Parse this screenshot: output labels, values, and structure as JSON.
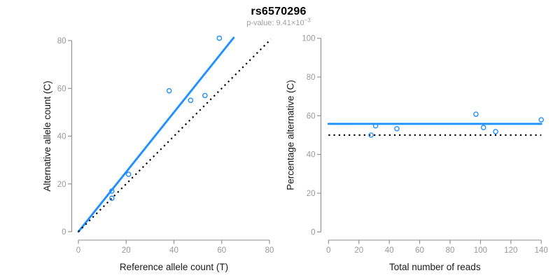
{
  "header": {
    "title": "rs6570296",
    "subtitle": {
      "label": "p-value: ",
      "mantissa": "9.41",
      "base": "×10",
      "exponent": "−3"
    }
  },
  "colors": {
    "accent_blue": "#1E90FF",
    "line_black": "#000000",
    "axis_gray": "#8C8C8C",
    "tick_label_gray": "#999999",
    "axis_title_color": "#1A1A1A",
    "subtitle_gray": "#9E9E9E",
    "background": "#FFFFFF"
  },
  "chart_data": [
    {
      "type": "scatter",
      "name": "allele-counts",
      "xlabel": "Reference allele count (T)",
      "ylabel": "Alternative allele count (C)",
      "xlim": [
        0,
        80
      ],
      "ylim": [
        0,
        80
      ],
      "xticks": [
        0,
        20,
        40,
        60,
        80
      ],
      "yticks": [
        0,
        20,
        40,
        60,
        80
      ],
      "grid": false,
      "legend": "none",
      "points": [
        [
          14,
          14
        ],
        [
          14,
          17
        ],
        [
          21,
          24
        ],
        [
          38,
          59
        ],
        [
          47,
          55
        ],
        [
          53,
          57
        ],
        [
          59,
          81
        ]
      ],
      "lines": [
        {
          "name": "regression-fit",
          "style": "solid",
          "color_key": "accent_blue",
          "x": [
            0,
            65
          ],
          "y": [
            0,
            81.2
          ]
        },
        {
          "name": "identity-diagonal",
          "style": "dotted",
          "color_key": "line_black",
          "x": [
            0,
            80.6
          ],
          "y": [
            0,
            80.6
          ]
        }
      ]
    },
    {
      "type": "scatter",
      "name": "percentage-vs-reads",
      "xlabel": "Total number of reads",
      "ylabel": "Percentage alternative (C)",
      "xlim": [
        0,
        140
      ],
      "ylim": [
        0,
        100
      ],
      "xticks": [
        0,
        20,
        40,
        60,
        80,
        100,
        120,
        140
      ],
      "yticks": [
        0,
        20,
        40,
        60,
        80,
        100
      ],
      "grid": false,
      "legend": "none",
      "points": [
        [
          28,
          50
        ],
        [
          31,
          54.8
        ],
        [
          45,
          53.3
        ],
        [
          97,
          60.8
        ],
        [
          102,
          53.9
        ],
        [
          110,
          51.8
        ],
        [
          140,
          57.9
        ]
      ],
      "lines": [
        {
          "name": "mean-percentage",
          "style": "solid",
          "color_key": "accent_blue",
          "x": [
            0,
            140
          ],
          "y": [
            55.8,
            55.8
          ]
        },
        {
          "name": "fifty-percent-reference",
          "style": "dotted",
          "color_key": "line_black",
          "x": [
            0,
            140
          ],
          "y": [
            50,
            50
          ]
        }
      ]
    }
  ]
}
